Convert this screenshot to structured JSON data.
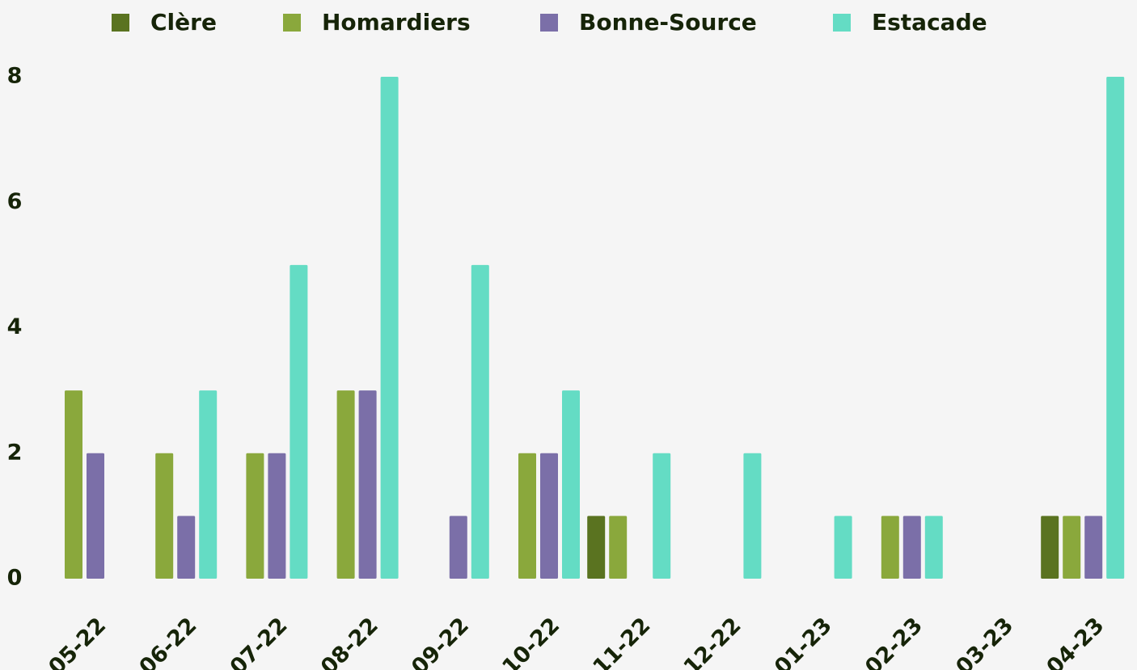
{
  "chart_data": {
    "type": "bar",
    "categories": [
      "05-22",
      "06-22",
      "07-22",
      "08-22",
      "09-22",
      "10-22",
      "11-22",
      "12-22",
      "01-23",
      "02-23",
      "03-23",
      "04-23"
    ],
    "series": [
      {
        "name": "Clère",
        "color": "#5a7320",
        "values": [
          0,
          0,
          0,
          0,
          0,
          0,
          1,
          0,
          0,
          0,
          0,
          1
        ]
      },
      {
        "name": "Homardiers",
        "color": "#8aa83c",
        "values": [
          3,
          2,
          2,
          3,
          0,
          2,
          1,
          0,
          0,
          1,
          0,
          1
        ]
      },
      {
        "name": "Bonne-Source",
        "color": "#7b6fa8",
        "values": [
          2,
          1,
          2,
          3,
          1,
          2,
          0,
          0,
          0,
          1,
          0,
          1
        ]
      },
      {
        "name": "Estacade",
        "color": "#64dcc4",
        "values": [
          0,
          3,
          5,
          8,
          5,
          3,
          2,
          2,
          1,
          1,
          0,
          8
        ]
      }
    ],
    "ylim": [
      0,
      8
    ],
    "yticks": [
      0,
      2,
      4,
      6,
      8
    ],
    "grid": false,
    "legend": "top"
  }
}
